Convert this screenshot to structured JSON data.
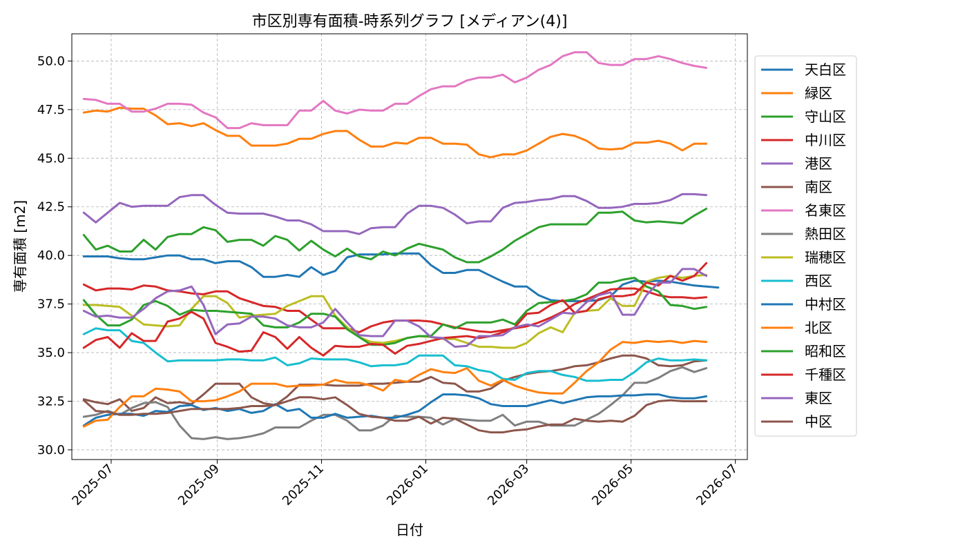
{
  "chart_data": {
    "type": "line",
    "title": "市区別専有面積-時系列グラフ [メディアン(4)]",
    "xlabel": "日付",
    "ylabel": "専有面積 [m2]",
    "xlim": [
      "2025-06-08",
      "2026-07-08"
    ],
    "ylim": [
      29.5,
      51.4
    ],
    "grid": true,
    "legend_position": "right",
    "x_ticks": [
      "2025-07",
      "2025-09",
      "2025-11",
      "2026-01",
      "2026-03",
      "2026-05",
      "2026-07"
    ],
    "y_ticks": [
      "30.0",
      "32.5",
      "35.0",
      "37.5",
      "40.0",
      "42.5",
      "45.0",
      "47.5",
      "50.0"
    ],
    "x_start": "2025-06-15",
    "x_step_days": 7,
    "series": [
      {
        "name": "天白区",
        "color": "#1f77b4",
        "values": [
          39.95,
          39.95,
          39.95,
          39.85,
          39.8,
          39.8,
          39.9,
          40.0,
          40.0,
          39.8,
          39.8,
          39.6,
          39.7,
          39.7,
          39.4,
          38.9,
          38.9,
          39.0,
          38.9,
          39.4,
          39.0,
          39.2,
          39.9,
          40.05,
          40.05,
          40.05,
          40.1,
          40.1,
          40.1,
          39.5,
          39.1,
          39.1,
          39.25,
          39.25,
          38.95,
          38.65,
          38.4,
          38.4,
          37.95,
          37.7,
          37.65,
          37.65,
          37.65,
          37.7,
          37.9,
          38.5,
          38.7,
          38.65,
          38.7,
          38.65,
          38.55,
          38.45,
          38.4,
          38.35
        ]
      },
      {
        "name": "緑区",
        "color": "#ff7f0e",
        "values": [
          47.35,
          47.45,
          47.4,
          47.6,
          47.55,
          47.55,
          47.2,
          46.75,
          46.8,
          46.65,
          46.8,
          46.45,
          46.15,
          46.15,
          45.65,
          45.65,
          45.65,
          45.75,
          46.0,
          46.0,
          46.25,
          46.4,
          46.4,
          45.95,
          45.6,
          45.6,
          45.8,
          45.75,
          46.05,
          46.05,
          45.75,
          45.75,
          45.7,
          45.2,
          45.05,
          45.2,
          45.2,
          45.4,
          45.75,
          46.1,
          46.25,
          46.15,
          45.9,
          45.5,
          45.45,
          45.5,
          45.8,
          45.8,
          45.9,
          45.75,
          45.4,
          45.75,
          45.75
        ]
      },
      {
        "name": "守山区",
        "color": "#2ca02c",
        "values": [
          41.05,
          40.3,
          40.5,
          40.2,
          40.2,
          40.8,
          40.3,
          40.95,
          41.1,
          41.1,
          41.45,
          41.3,
          40.7,
          40.8,
          40.8,
          40.5,
          41.0,
          40.8,
          40.25,
          40.75,
          40.3,
          39.95,
          40.35,
          39.95,
          39.8,
          40.2,
          40.0,
          40.35,
          40.6,
          40.45,
          40.3,
          39.9,
          39.65,
          39.65,
          39.95,
          40.3,
          40.75,
          41.1,
          41.45,
          41.6,
          41.6,
          41.6,
          41.6,
          42.2,
          42.2,
          42.25,
          41.8,
          41.7,
          41.75,
          41.7,
          41.65,
          42.05,
          42.4
        ]
      },
      {
        "name": "中川区",
        "color": "#d62728",
        "values": [
          38.5,
          38.2,
          38.3,
          38.3,
          38.25,
          38.45,
          38.4,
          38.2,
          38.15,
          38.05,
          38.0,
          38.15,
          38.15,
          37.8,
          37.6,
          37.4,
          37.35,
          37.15,
          37.15,
          36.7,
          36.25,
          36.25,
          36.25,
          36.05,
          36.35,
          36.55,
          36.65,
          36.65,
          36.65,
          36.6,
          36.45,
          36.3,
          36.2,
          36.1,
          36.05,
          36.15,
          36.25,
          36.35,
          36.55,
          36.8,
          37.1,
          37.5,
          37.75,
          38.0,
          38.25,
          38.3,
          38.3,
          38.15,
          37.95,
          37.85,
          37.85,
          37.8,
          37.85
        ]
      },
      {
        "name": "港区",
        "color": "#9467bd",
        "values": [
          42.2,
          41.7,
          42.2,
          42.7,
          42.5,
          42.55,
          42.55,
          42.55,
          43.0,
          43.1,
          43.1,
          42.6,
          42.2,
          42.15,
          42.15,
          42.15,
          42.0,
          41.8,
          41.8,
          41.6,
          41.25,
          41.25,
          41.25,
          41.1,
          41.4,
          41.45,
          41.45,
          42.15,
          42.55,
          42.55,
          42.45,
          42.1,
          41.65,
          41.75,
          41.75,
          42.45,
          42.7,
          42.75,
          42.85,
          42.9,
          43.05,
          43.05,
          42.8,
          42.45,
          42.45,
          42.5,
          42.65,
          42.65,
          42.7,
          42.85,
          43.15,
          43.15,
          43.1
        ]
      },
      {
        "name": "南区",
        "color": "#8c564b",
        "values": [
          32.6,
          32.45,
          32.35,
          32.6,
          32.0,
          32.15,
          32.7,
          32.4,
          32.45,
          32.35,
          32.85,
          33.4,
          33.4,
          33.4,
          32.7,
          32.4,
          32.3,
          32.75,
          33.35,
          33.35,
          33.35,
          33.3,
          33.3,
          33.3,
          33.4,
          33.4,
          33.45,
          33.5,
          33.5,
          33.75,
          33.45,
          33.4,
          33.0,
          33.0,
          33.15,
          33.55,
          33.75,
          33.9,
          34.0,
          34.05,
          34.15,
          34.3,
          34.35,
          34.5,
          34.7,
          34.85,
          34.85,
          34.7,
          34.35,
          34.3,
          34.35,
          34.55,
          34.6
        ]
      },
      {
        "name": "名東区",
        "color": "#e377c2",
        "values": [
          48.05,
          48.0,
          47.8,
          47.8,
          47.4,
          47.4,
          47.55,
          47.8,
          47.8,
          47.75,
          47.35,
          47.1,
          46.55,
          46.55,
          46.8,
          46.7,
          46.7,
          46.7,
          47.45,
          47.45,
          47.95,
          47.45,
          47.3,
          47.5,
          47.45,
          47.45,
          47.8,
          47.8,
          48.2,
          48.55,
          48.7,
          48.7,
          49.0,
          49.15,
          49.15,
          49.3,
          48.9,
          49.15,
          49.55,
          49.8,
          50.25,
          50.45,
          50.45,
          49.9,
          49.8,
          49.8,
          50.1,
          50.1,
          50.25,
          50.1,
          49.9,
          49.75,
          49.65
        ]
      },
      {
        "name": "熱田区",
        "color": "#7f7f7f",
        "values": [
          31.7,
          31.8,
          32.0,
          31.8,
          32.15,
          32.4,
          32.45,
          32.2,
          31.25,
          30.6,
          30.55,
          30.65,
          30.55,
          30.6,
          30.7,
          30.85,
          31.15,
          31.15,
          31.15,
          31.5,
          31.8,
          31.8,
          31.5,
          31.0,
          31.0,
          31.25,
          31.75,
          31.7,
          31.7,
          31.65,
          31.3,
          31.6,
          31.55,
          31.5,
          31.5,
          31.8,
          31.25,
          31.45,
          31.45,
          31.25,
          31.25,
          31.25,
          31.55,
          31.85,
          32.3,
          32.8,
          33.45,
          33.45,
          33.7,
          34.05,
          34.25,
          34.0,
          34.2
        ]
      },
      {
        "name": "瑞穂区",
        "color": "#bcbd22",
        "values": [
          37.45,
          37.45,
          37.4,
          37.35,
          36.9,
          36.45,
          36.4,
          36.35,
          36.4,
          37.25,
          37.9,
          37.9,
          37.55,
          36.8,
          36.9,
          36.95,
          37.0,
          37.4,
          37.65,
          37.9,
          37.9,
          36.9,
          36.3,
          35.8,
          35.55,
          35.5,
          35.6,
          35.75,
          35.85,
          35.8,
          35.7,
          35.7,
          35.5,
          35.3,
          35.3,
          35.25,
          35.25,
          35.5,
          36.0,
          36.3,
          36.05,
          37.05,
          37.15,
          37.2,
          37.8,
          37.4,
          37.4,
          38.65,
          38.85,
          38.95,
          38.85,
          38.95,
          39.0
        ]
      },
      {
        "name": "西区",
        "color": "#17becf",
        "values": [
          35.95,
          36.25,
          36.15,
          36.15,
          35.6,
          35.5,
          35.0,
          34.55,
          34.6,
          34.6,
          34.6,
          34.6,
          34.65,
          34.65,
          34.6,
          34.6,
          34.75,
          34.35,
          34.45,
          34.7,
          34.65,
          34.65,
          34.65,
          34.5,
          34.3,
          34.35,
          34.35,
          34.45,
          34.85,
          34.85,
          34.85,
          34.35,
          34.3,
          34.1,
          34.0,
          33.65,
          33.6,
          33.95,
          34.05,
          34.05,
          33.85,
          33.75,
          33.55,
          33.55,
          33.6,
          33.6,
          34.0,
          34.5,
          34.7,
          34.6,
          34.6,
          34.65,
          34.6
        ]
      },
      {
        "name": "中村区",
        "color": "#1f77b4",
        "values": [
          31.25,
          31.65,
          31.8,
          31.85,
          31.85,
          31.75,
          32.0,
          31.95,
          32.25,
          32.3,
          32.05,
          32.15,
          32.0,
          32.1,
          31.9,
          32.0,
          32.35,
          32.0,
          32.1,
          31.65,
          31.65,
          31.85,
          31.65,
          31.7,
          31.75,
          31.65,
          31.65,
          31.8,
          32.0,
          32.45,
          32.85,
          32.85,
          32.8,
          32.65,
          32.35,
          32.25,
          32.25,
          32.25,
          32.4,
          32.55,
          32.4,
          32.55,
          32.7,
          32.75,
          32.75,
          32.8,
          32.8,
          32.85,
          32.85,
          32.7,
          32.65,
          32.65,
          32.75
        ]
      },
      {
        "name": "北区",
        "color": "#ff7f0e",
        "values": [
          31.2,
          31.5,
          31.55,
          32.2,
          32.75,
          32.75,
          33.15,
          33.1,
          33.0,
          32.5,
          32.5,
          32.55,
          32.75,
          33.0,
          33.4,
          33.4,
          33.4,
          33.25,
          33.3,
          33.3,
          33.35,
          33.6,
          33.45,
          33.45,
          33.3,
          33.05,
          33.6,
          33.5,
          33.85,
          34.15,
          34.0,
          33.95,
          34.2,
          33.55,
          33.3,
          33.6,
          33.3,
          33.1,
          32.95,
          32.9,
          32.9,
          33.45,
          34.05,
          34.5,
          35.15,
          35.55,
          35.5,
          35.6,
          35.55,
          35.6,
          35.5,
          35.6,
          35.55
        ]
      },
      {
        "name": "昭和区",
        "color": "#2ca02c",
        "values": [
          37.7,
          36.95,
          36.4,
          36.4,
          36.7,
          37.45,
          37.65,
          37.4,
          36.95,
          37.2,
          37.15,
          37.15,
          37.1,
          37.05,
          37.0,
          36.4,
          36.3,
          36.3,
          36.55,
          37.0,
          37.0,
          36.85,
          36.2,
          35.8,
          35.4,
          35.4,
          35.5,
          35.75,
          35.85,
          35.85,
          36.45,
          36.25,
          36.55,
          36.55,
          36.55,
          36.7,
          36.45,
          37.15,
          37.55,
          37.6,
          37.65,
          37.75,
          38.0,
          38.6,
          38.6,
          38.75,
          38.85,
          38.4,
          38.15,
          37.45,
          37.4,
          37.25,
          37.35
        ]
      },
      {
        "name": "千種区",
        "color": "#d62728",
        "values": [
          35.25,
          35.65,
          35.8,
          35.25,
          36.0,
          35.6,
          35.6,
          36.6,
          36.75,
          37.1,
          36.75,
          35.5,
          35.3,
          35.05,
          35.1,
          36.05,
          35.8,
          35.2,
          35.8,
          35.25,
          34.85,
          35.35,
          35.3,
          35.3,
          35.45,
          35.4,
          34.95,
          35.35,
          35.45,
          35.6,
          35.75,
          35.8,
          35.85,
          35.75,
          35.85,
          36.05,
          36.3,
          37.0,
          37.05,
          37.45,
          37.7,
          37.05,
          37.15,
          37.75,
          37.9,
          37.9,
          38.0,
          38.6,
          38.45,
          38.95,
          38.7,
          38.95,
          39.6
        ]
      },
      {
        "name": "東区",
        "color": "#9467bd",
        "values": [
          37.15,
          36.85,
          36.9,
          36.8,
          36.8,
          37.25,
          37.8,
          38.15,
          38.2,
          38.4,
          37.45,
          35.95,
          36.45,
          36.5,
          36.85,
          36.85,
          36.75,
          36.4,
          36.3,
          36.3,
          36.55,
          37.25,
          36.55,
          35.9,
          35.85,
          35.85,
          36.65,
          36.65,
          36.35,
          35.8,
          35.75,
          35.3,
          35.35,
          35.85,
          35.85,
          35.9,
          36.3,
          36.45,
          36.35,
          36.7,
          37.05,
          37.0,
          37.6,
          37.95,
          38.1,
          36.95,
          36.95,
          37.95,
          38.6,
          38.6,
          39.3,
          39.3,
          38.95
        ]
      },
      {
        "name": "中区",
        "color": "#8c564b",
        "values": [
          32.55,
          32.0,
          31.95,
          31.8,
          31.8,
          31.85,
          31.85,
          31.9,
          32.0,
          32.1,
          32.1,
          32.1,
          32.1,
          32.15,
          32.25,
          32.25,
          32.3,
          32.5,
          32.7,
          32.7,
          32.6,
          32.7,
          32.3,
          31.85,
          31.7,
          31.65,
          31.5,
          31.5,
          31.7,
          31.35,
          31.65,
          31.6,
          31.3,
          31.0,
          30.9,
          30.9,
          31.0,
          31.05,
          31.2,
          31.3,
          31.3,
          31.6,
          31.5,
          31.45,
          31.5,
          31.45,
          31.75,
          32.3,
          32.5,
          32.55,
          32.5,
          32.5,
          32.5
        ]
      }
    ]
  }
}
